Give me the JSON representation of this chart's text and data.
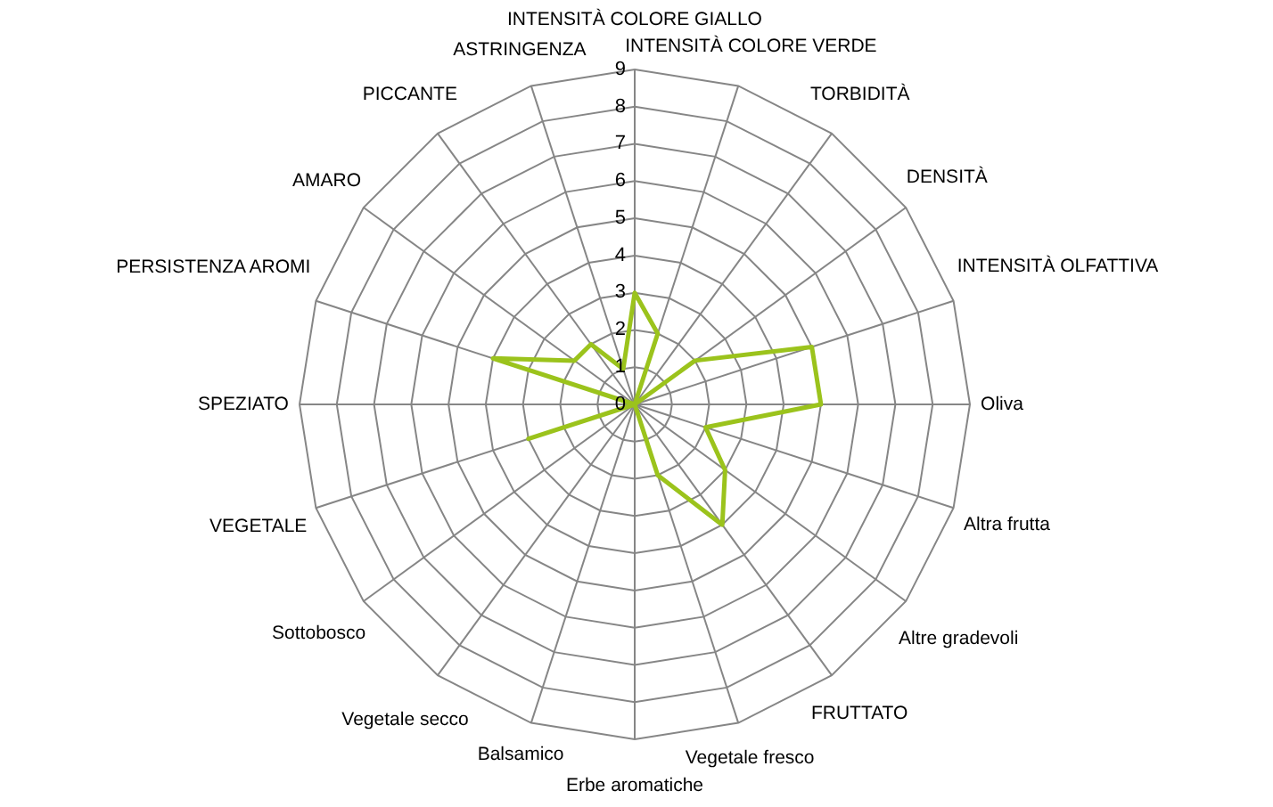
{
  "chart_data": {
    "type": "radar",
    "categories": [
      "INTENSITÀ COLORE GIALLO",
      "INTENSITÀ COLORE VERDE",
      "TORBIDITÀ",
      "DENSITÀ",
      "INTENSITÀ OLFATTIVA",
      "Oliva",
      "Altra frutta",
      "Altre gradevoli",
      "FRUTTATO",
      "Vegetale fresco",
      "Erbe aromatiche",
      "Balsamico",
      "Vegetale secco",
      "Sottobosco",
      "VEGETALE",
      "SPEZIATO",
      "PERSISTENZA AROMI",
      "AMARO",
      "PICCANTE",
      "ASTRINGENZA"
    ],
    "series": [
      {
        "color": "#9bc31c",
        "values": [
          3,
          2,
          0,
          2,
          5,
          5,
          2,
          3,
          4,
          2,
          0,
          0,
          0,
          0,
          3,
          0,
          4,
          2,
          2,
          1
        ]
      }
    ],
    "ylim": [
      0,
      9
    ],
    "yticks": [
      0,
      1,
      2,
      3,
      4,
      5,
      6,
      7,
      8,
      9
    ],
    "grid": true
  }
}
